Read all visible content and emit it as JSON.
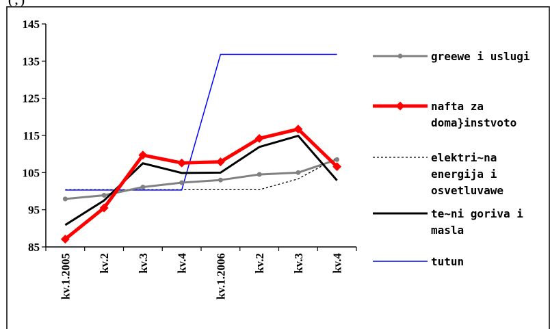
{
  "chart_data": {
    "type": "line",
    "title": "",
    "xlabel": "",
    "ylabel": "",
    "categories": [
      "kv.1.2005",
      "kv.2",
      "kv.3",
      "kv.4",
      "kv.1.2006",
      "kv.2",
      "kv.3",
      "kv.4"
    ],
    "ylim": [
      85,
      145
    ],
    "yticks": [
      85,
      95,
      105,
      115,
      125,
      135,
      145
    ],
    "grid": false,
    "legend_position": "right",
    "series": [
      {
        "name": "greewe i uslugi",
        "color": "#808080",
        "style": "solid-circle",
        "values": [
          97.9,
          98.9,
          101.1,
          102.3,
          103.0,
          104.5,
          105.0,
          108.5
        ]
      },
      {
        "name": "nafta za doma}instvoto",
        "color": "#ff0000",
        "style": "thick-diamond",
        "values": [
          87.1,
          95.5,
          109.7,
          107.6,
          107.9,
          114.2,
          116.7,
          106.6
        ]
      },
      {
        "name": "elektri~na energija i osvetluvawe",
        "color": "#000000",
        "style": "dotted",
        "values": [
          100.4,
          100.4,
          100.4,
          100.4,
          100.4,
          100.4,
          103.3,
          109.0
        ]
      },
      {
        "name": "te~ni goriva i masla",
        "color": "#000000",
        "style": "solid",
        "values": [
          90.9,
          97.5,
          107.5,
          104.9,
          105.0,
          111.9,
          114.9,
          102.9
        ]
      },
      {
        "name": "tutun",
        "color": "#0000ff",
        "style": "thin",
        "values": [
          100.3,
          100.3,
          100.3,
          100.3,
          136.8,
          136.8,
          136.8,
          136.8
        ]
      }
    ],
    "legend": [
      {
        "lines": [
          "greewe i uslugi"
        ]
      },
      {
        "lines": [
          "nafta za",
          "doma}instvoto"
        ]
      },
      {
        "lines": [
          "elektri~na",
          "energija i",
          "osvetluvawe"
        ]
      },
      {
        "lines": [
          "te~ni goriva i",
          "masla"
        ]
      },
      {
        "lines": [
          "tutun"
        ]
      }
    ],
    "top_caption_fragment": "(                                   ,             )"
  }
}
